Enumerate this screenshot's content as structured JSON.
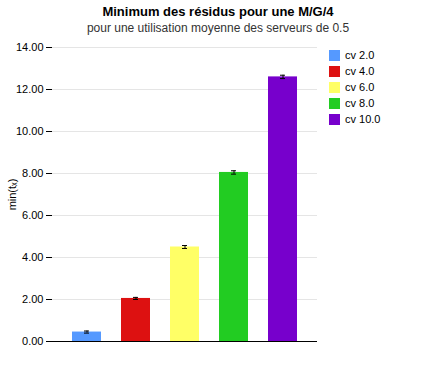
{
  "chart_data": {
    "type": "bar",
    "title": "Minimum des résidus pour une M/G/4",
    "subtitle": "pour une utilisation moyenne des serveurs de 0.5",
    "ylabel": "min(tₓ)",
    "categories": [
      "cv 2.0",
      "cv 4.0",
      "cv 6.0",
      "cv 8.0",
      "cv 10.0"
    ],
    "values": [
      0.45,
      2.05,
      4.5,
      8.05,
      12.6
    ],
    "errors": [
      0.05,
      0.05,
      0.07,
      0.08,
      0.08
    ],
    "colors": [
      "#5599ff",
      "#dd1111",
      "#ffff66",
      "#22cc22",
      "#7700cc"
    ],
    "ylim": [
      0,
      14.0
    ],
    "yticks": [
      {
        "value": 0.0,
        "label": "0.00"
      },
      {
        "value": 2.0,
        "label": "2.00"
      },
      {
        "value": 4.0,
        "label": "4.00"
      },
      {
        "value": 6.0,
        "label": "6.00"
      },
      {
        "value": 8.0,
        "label": "8.00"
      },
      {
        "value": 10.0,
        "label": "10.00"
      },
      {
        "value": 12.0,
        "label": "12.00"
      },
      {
        "value": 14.0,
        "label": "14.00"
      }
    ],
    "grid": true,
    "legend": "right",
    "tick_labels": "y"
  }
}
